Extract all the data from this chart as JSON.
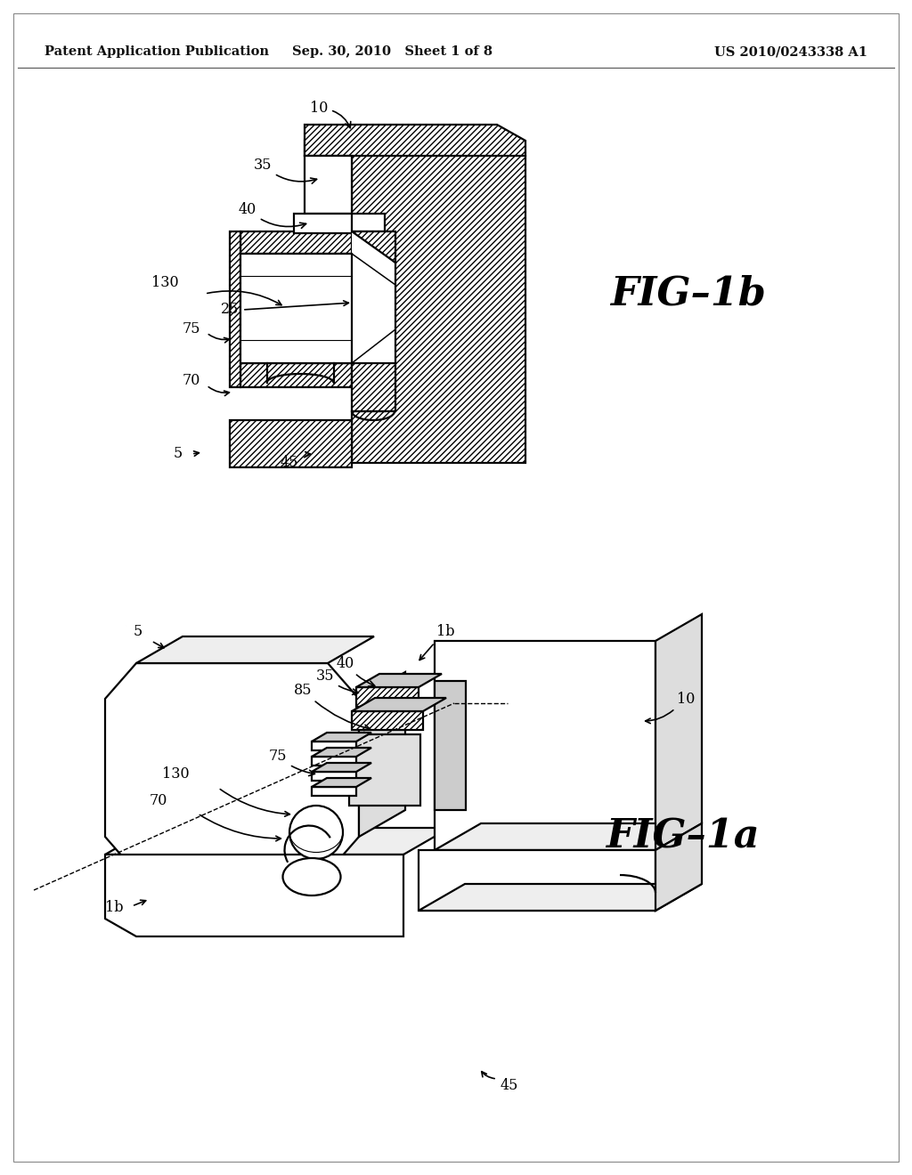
{
  "bg": "#ffffff",
  "lc": "#000000",
  "header_left": "Patent Application Publication",
  "header_center": "Sep. 30, 2010   Sheet 1 of 8",
  "header_right": "US 2010/0243338 A1",
  "fig1b_label": "FIG–1b",
  "fig1a_label": "FIG–1a",
  "hatch": "////",
  "lw": 1.6
}
